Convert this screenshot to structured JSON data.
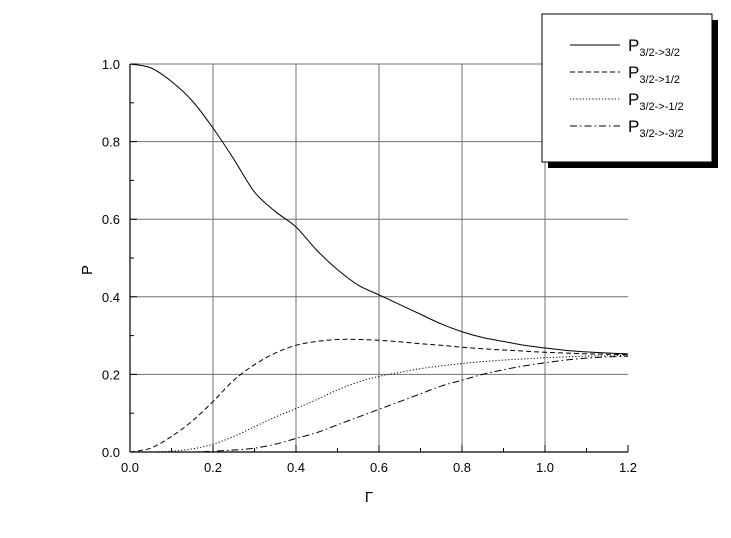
{
  "chart_data": {
    "type": "line",
    "title": "",
    "xlabel": "Γ",
    "ylabel": "P",
    "xlim": [
      0.0,
      1.2
    ],
    "ylim": [
      0.0,
      1.0
    ],
    "x_ticks": [
      "0.0",
      "0.2",
      "0.4",
      "0.6",
      "0.8",
      "1.0",
      "1.2"
    ],
    "y_ticks": [
      "0.0",
      "0.2",
      "0.4",
      "0.6",
      "0.8",
      "1.0"
    ],
    "grid": true,
    "legend_position": "top-right",
    "x": [
      0.0,
      0.05,
      0.1,
      0.15,
      0.2,
      0.25,
      0.3,
      0.35,
      0.4,
      0.45,
      0.5,
      0.55,
      0.6,
      0.65,
      0.7,
      0.75,
      0.8,
      0.85,
      0.9,
      0.95,
      1.0,
      1.05,
      1.1,
      1.15,
      1.2
    ],
    "series": [
      {
        "name_main": "P",
        "name_sub": "3/2->3/2",
        "style": "solid",
        "values": [
          1.0,
          0.99,
          0.955,
          0.905,
          0.835,
          0.755,
          0.67,
          0.62,
          0.58,
          0.52,
          0.47,
          0.43,
          0.405,
          0.38,
          0.355,
          0.33,
          0.31,
          0.295,
          0.285,
          0.275,
          0.268,
          0.262,
          0.258,
          0.255,
          0.253
        ]
      },
      {
        "name_main": "P",
        "name_sub": "3/2->1/2",
        "style": "dashed",
        "values": [
          0.0,
          0.01,
          0.04,
          0.08,
          0.13,
          0.185,
          0.225,
          0.255,
          0.275,
          0.285,
          0.29,
          0.29,
          0.288,
          0.284,
          0.279,
          0.275,
          0.27,
          0.266,
          0.263,
          0.26,
          0.257,
          0.255,
          0.253,
          0.252,
          0.251
        ]
      },
      {
        "name_main": "P",
        "name_sub": "3/2->-1/2",
        "style": "dotted",
        "values": [
          0.0,
          0.0,
          0.002,
          0.008,
          0.02,
          0.04,
          0.065,
          0.09,
          0.112,
          0.135,
          0.16,
          0.18,
          0.195,
          0.205,
          0.215,
          0.222,
          0.228,
          0.233,
          0.237,
          0.24,
          0.243,
          0.245,
          0.247,
          0.248,
          0.249
        ]
      },
      {
        "name_main": "P",
        "name_sub": "3/2->-3/2",
        "style": "dashdot",
        "values": [
          0.0,
          0.0,
          0.0,
          0.0,
          0.002,
          0.005,
          0.01,
          0.02,
          0.035,
          0.05,
          0.07,
          0.09,
          0.11,
          0.13,
          0.15,
          0.17,
          0.185,
          0.2,
          0.212,
          0.222,
          0.23,
          0.237,
          0.242,
          0.245,
          0.247
        ]
      }
    ]
  }
}
